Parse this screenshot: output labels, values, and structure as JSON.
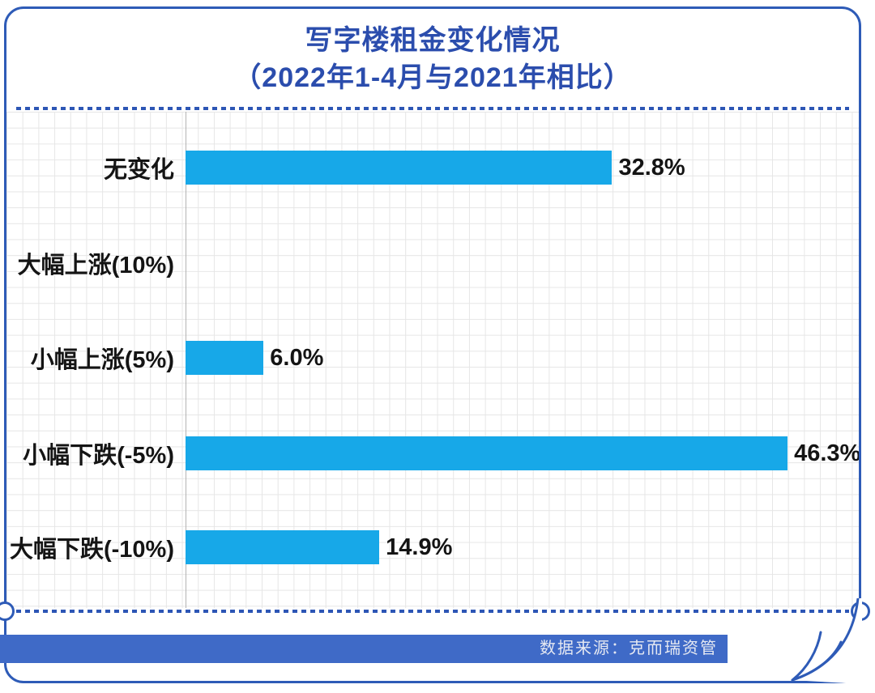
{
  "title": {
    "line1": "写字楼租金变化情况",
    "line2": "（2022年1-4月与2021年相比）"
  },
  "source": {
    "label": "数据来源：克而瑞资管"
  },
  "colors": {
    "bar": "#17a8e8",
    "border_blue": "#2e5bb7",
    "title_blue": "#2b4dad",
    "source_bar_blue": "#3f6ac7",
    "label_text": "#141414"
  },
  "chart_data": {
    "type": "bar",
    "orientation": "horizontal",
    "title": "写字楼租金变化情况（2022年1-4月与2021年相比）",
    "categories": [
      "无变化",
      "大幅上涨(10%)",
      "小幅上涨(5%)",
      "小幅下跌(-5%)",
      "大幅下跌(-10%)"
    ],
    "values": [
      32.8,
      0,
      6.0,
      46.3,
      14.9
    ],
    "value_labels": [
      "32.8%",
      "",
      "6.0%",
      "46.3%",
      "14.9%"
    ],
    "unit": "%",
    "xlim": [
      0,
      50
    ],
    "grid": "on",
    "legend": "none",
    "source": "数据来源：克而瑞资管"
  }
}
